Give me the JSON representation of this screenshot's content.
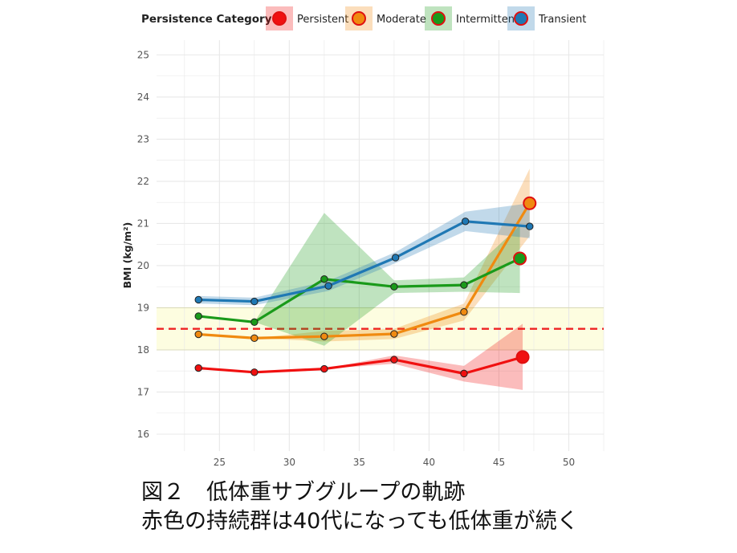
{
  "chart_data": {
    "type": "line",
    "xlabel": "",
    "ylabel": "BMI (kg/m²)",
    "xlim": [
      20.5,
      52.5
    ],
    "ylim": [
      15.6,
      25.35
    ],
    "x_ticks": [
      25,
      30,
      35,
      40,
      45,
      50
    ],
    "y_ticks": [
      16,
      17,
      18,
      19,
      20,
      21,
      22,
      23,
      24,
      25
    ],
    "grid": true,
    "legend_position": "top",
    "legend_title": "Persistence Category",
    "normal_band": [
      18.0,
      19.0
    ],
    "reference_line": 18.5,
    "colors": {
      "band": "#fdfde0",
      "reference": "#ee2222",
      "grid": "#e8e8e8",
      "tick_text": "#555555"
    },
    "series": [
      {
        "name": "Persistent",
        "color": "#f01010",
        "x": [
          23.5,
          27.5,
          32.5,
          37.5,
          42.5,
          46.7
        ],
        "y": [
          17.57,
          17.47,
          17.55,
          17.77,
          17.44,
          17.83
        ],
        "ci_lower": [
          17.57,
          17.47,
          17.55,
          17.67,
          17.25,
          17.05
        ],
        "ci_upper": [
          17.57,
          17.47,
          17.55,
          17.87,
          17.62,
          18.62
        ]
      },
      {
        "name": "Moderate",
        "color": "#f08a10",
        "x": [
          23.5,
          27.5,
          32.5,
          37.5,
          42.5,
          47.2
        ],
        "y": [
          18.37,
          18.28,
          18.32,
          18.38,
          18.9,
          21.48
        ],
        "ci_lower": [
          18.37,
          18.28,
          18.2,
          18.26,
          18.7,
          20.7
        ],
        "ci_upper": [
          18.37,
          18.28,
          18.45,
          18.5,
          19.1,
          22.3
        ]
      },
      {
        "name": "Intermittent",
        "color": "#1a9a1a",
        "x": [
          23.5,
          27.5,
          32.5,
          37.5,
          42.5,
          46.5
        ],
        "y": [
          18.8,
          18.66,
          19.68,
          19.5,
          19.54,
          20.17
        ],
        "ci_lower": [
          18.8,
          18.66,
          18.1,
          19.35,
          19.38,
          19.35
        ],
        "ci_upper": [
          18.8,
          18.66,
          21.25,
          19.65,
          19.72,
          20.95
        ]
      },
      {
        "name": "Transient",
        "color": "#1f78b4",
        "x": [
          23.5,
          27.5,
          32.8,
          37.6,
          42.6,
          47.2
        ],
        "y": [
          19.19,
          19.15,
          19.52,
          20.19,
          21.05,
          20.93
        ],
        "ci_lower": [
          19.1,
          19.06,
          19.4,
          20.06,
          20.82,
          20.65
        ],
        "ci_upper": [
          19.28,
          19.24,
          19.64,
          20.32,
          21.28,
          21.48
        ]
      }
    ]
  },
  "caption": {
    "line1": "図２　低体重サブグループの軌跡",
    "line2": "赤色の持続群は40代になっても低体重が続く"
  }
}
